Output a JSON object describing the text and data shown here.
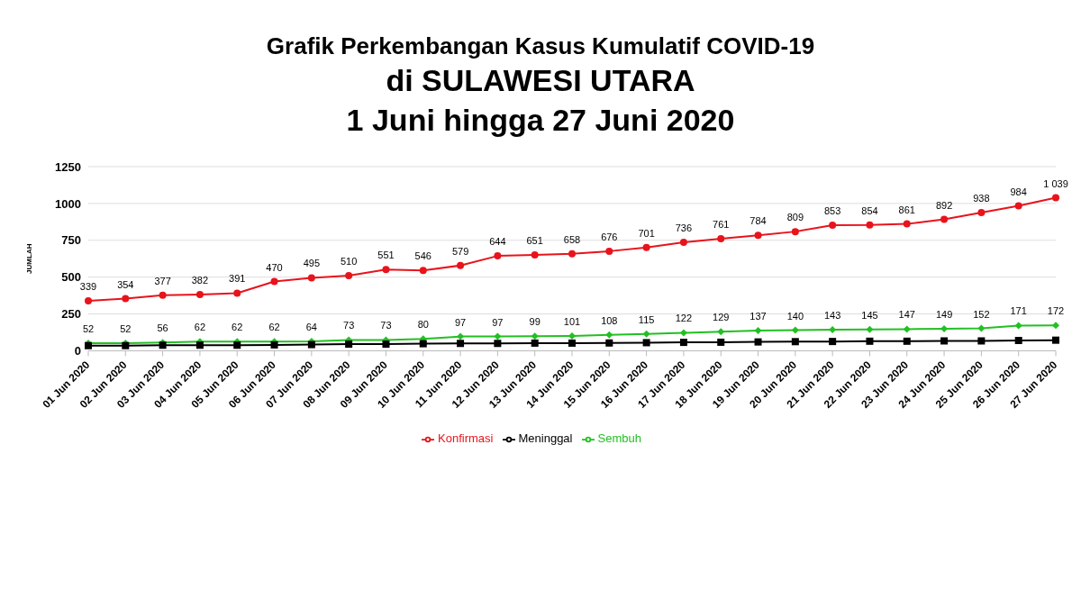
{
  "chart_data": {
    "type": "line",
    "title": "Grafik Perkembangan Kasus Kumulatif COVID-19",
    "subtitle": "di SULAWESI UTARA\n1 Juni hingga 27 Juni 2020",
    "ylabel": "JUMLAH",
    "categories": [
      "01 Jun 2020",
      "02 Jun 2020",
      "03 Jun 2020",
      "04 Jun 2020",
      "05 Jun 2020",
      "06 Jun 2020",
      "07 Jun 2020",
      "08 Jun 2020",
      "09 Jun 2020",
      "10 Jun 2020",
      "11 Jun 2020",
      "12 Jun 2020",
      "13 Jun 2020",
      "14 Jun 2020",
      "15 Jun 2020",
      "16 Jun 2020",
      "17 Jun 2020",
      "18 Jun 2020",
      "19 Jun 2020",
      "20 Jun 2020",
      "21 Jun 2020",
      "22 Jun 2020",
      "23 Jun 2020",
      "24 Jun 2020",
      "25 Jun 2020",
      "26 Jun 2020",
      "27 Jun 2020"
    ],
    "series": [
      {
        "name": "Konfirmasi",
        "color": "#e8131b",
        "marker": "circle",
        "values": [
          339,
          354,
          377,
          382,
          391,
          470,
          495,
          510,
          551,
          546,
          579,
          644,
          651,
          658,
          676,
          701,
          736,
          761,
          784,
          809,
          853,
          854,
          861,
          892,
          938,
          984,
          1039
        ],
        "value_labels": [
          "339",
          "354",
          "377",
          "382",
          "391",
          "470",
          "495",
          "510",
          "551",
          "546",
          "579",
          "644",
          "651",
          "658",
          "676",
          "701",
          "736",
          "761",
          "784",
          "809",
          "853",
          "854",
          "861",
          "892",
          "938",
          "984",
          "1 039"
        ]
      },
      {
        "name": "Sembuh",
        "color": "#22c022",
        "marker": "diamond",
        "values": [
          52,
          52,
          56,
          62,
          62,
          62,
          64,
          73,
          73,
          80,
          97,
          97,
          99,
          101,
          108,
          115,
          122,
          129,
          137,
          140,
          143,
          145,
          147,
          149,
          152,
          171,
          172
        ],
        "value_labels": [
          "52",
          "52",
          "56",
          "62",
          "62",
          "62",
          "64",
          "73",
          "73",
          "80",
          "97",
          "97",
          "99",
          "101",
          "108",
          "115",
          "122",
          "129",
          "137",
          "140",
          "143",
          "145",
          "147",
          "149",
          "152",
          "171",
          "172"
        ]
      },
      {
        "name": "Meninggal",
        "color": "#000000",
        "marker": "square",
        "values": [
          35,
          35,
          38,
          38,
          38,
          40,
          42,
          45,
          45,
          48,
          50,
          50,
          52,
          52,
          53,
          55,
          57,
          58,
          60,
          62,
          63,
          65,
          65,
          67,
          67,
          70,
          72
        ]
      }
    ],
    "ylim": [
      0,
      1250
    ],
    "yticks": [
      0,
      250,
      500,
      750,
      1000,
      1250
    ],
    "grid": "y",
    "legend": "bottom",
    "line_style": "solid"
  }
}
